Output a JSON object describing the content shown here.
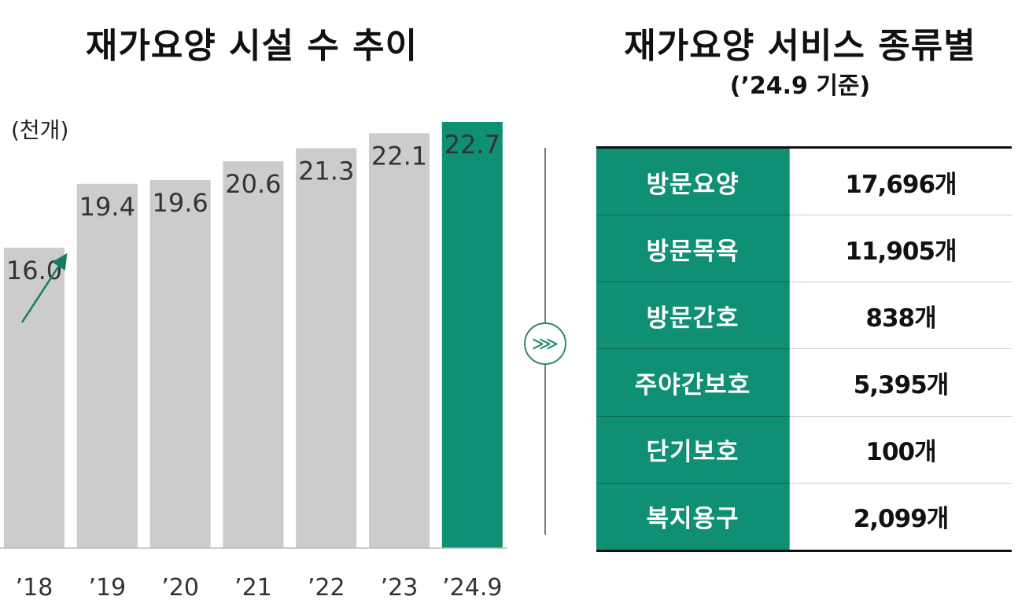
{
  "left_title": "재가요양 시설 수 추이",
  "right_title": "재가요양 서비스 종류별",
  "right_subtitle": "(’24.9 기준)",
  "unit_label": "(천개)",
  "colors": {
    "bar_default": "#cccccc",
    "bar_highlight": "#0f8f73",
    "accent": "#0f8f73"
  },
  "chart_data": {
    "type": "bar",
    "categories": [
      "’18",
      "’19",
      "’20",
      "’21",
      "’22",
      "’23",
      "’24.9"
    ],
    "values": [
      16.0,
      19.4,
      19.6,
      20.6,
      21.3,
      22.1,
      22.7
    ],
    "value_labels": [
      "16.0",
      "19.4",
      "19.6",
      "20.6",
      "21.3",
      "22.1",
      "22.7"
    ],
    "highlight_index": 6,
    "ylabel": "(천개)",
    "ylim": [
      0,
      24
    ],
    "grid": false,
    "legend": "none",
    "annotation": "arrow between ’18 and ’19"
  },
  "divider_icon": "triple-chevron-right-icon",
  "divider_glyph": "⋙",
  "table": {
    "rows": [
      {
        "name": "방문요양",
        "count": "17,696개"
      },
      {
        "name": "방문목욕",
        "count": "11,905개"
      },
      {
        "name": "방문간호",
        "count": "838개"
      },
      {
        "name": "주야간보호",
        "count": "5,395개"
      },
      {
        "name": "단기보호",
        "count": "100개"
      },
      {
        "name": "복지용구",
        "count": "2,099개"
      }
    ]
  }
}
